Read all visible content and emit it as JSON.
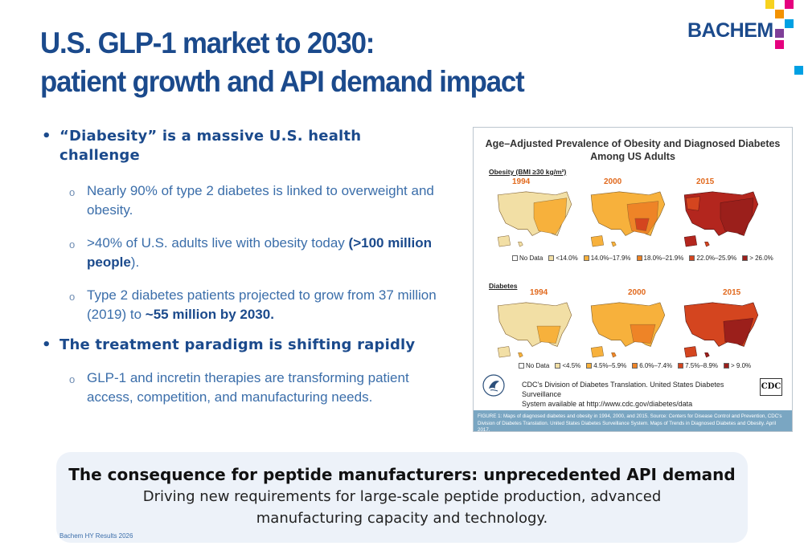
{
  "title": {
    "line1": "U.S. GLP-1 market to 2030:",
    "line2": "patient growth and API demand impact"
  },
  "logo": {
    "text": "BACHEM"
  },
  "bullets": [
    {
      "text": "“Diabesity” is a massive U.S. health challenge"
    },
    {
      "text": "The treatment paradigm is shifting rapidly"
    }
  ],
  "sub_bullets": {
    "s1": "Nearly 90% of type 2 diabetes is linked to overweight and obesity.",
    "s2_pre": ">40% of U.S. adults live with obesity today ",
    "s2_bold": "(>100 million people",
    "s2_post": ").",
    "s3_pre": "Type 2 diabetes patients projected to grow from 37 million (2019) to ",
    "s3_bold": "~55 million by 2030.",
    "s4": "GLP-1 and incretin therapies are transforming patient access, competition, and manufacturing needs."
  },
  "figure": {
    "title_line1": "Age–Adjusted Prevalence of Obesity and Diagnosed Diabetes",
    "title_line2": "Among US Adults",
    "obesity_label": "Obesity (BMI ≥30 kg/m²)",
    "diabetes_label": "Diabetes",
    "years": [
      "1994",
      "2000",
      "2015"
    ],
    "obesity_legend": [
      {
        "label": "No Data",
        "color": "#ffffff"
      },
      {
        "label": "<14.0%",
        "color": "#f2dfa5"
      },
      {
        "label": "14.0%–17.9%",
        "color": "#f7b13c"
      },
      {
        "label": "18.0%–21.9%",
        "color": "#ee8427"
      },
      {
        "label": "22.0%–25.9%",
        "color": "#d4451f"
      },
      {
        "label": "> 26.0%",
        "color": "#9b1f1b"
      }
    ],
    "diabetes_legend": [
      {
        "label": "No Data",
        "color": "#ffffff"
      },
      {
        "label": "<4.5%",
        "color": "#f2dfa5"
      },
      {
        "label": "4.5%–5.9%",
        "color": "#f7b13c"
      },
      {
        "label": "6.0%–7.4%",
        "color": "#ee8427"
      },
      {
        "label": "7.5%–8.9%",
        "color": "#d4451f"
      },
      {
        "label": "> 9.0%",
        "color": "#9b1f1b"
      }
    ],
    "source_line1": "CDC's Division of Diabetes Translation. United States Diabetes Surveillance",
    "source_line2": "System available at http://www.cdc.gov/diabetes/data",
    "cdc_logo": "CDC",
    "caption": "FIGURE 1: Maps of diagnosed diabetes and obesity in 1994, 2000, and 2015. Source: Centers for Disease Control and Prevention, CDC's Division of Diabetes Translation. United States Diabetes Surveillance System. Maps of Trends in Diagnosed Diabetes and Obesity. April 2017."
  },
  "callout": {
    "headline": "The consequence for peptide manufacturers: unprecedented API demand",
    "subline": "Driving new requirements for large-scale peptide production, advanced manufacturing capacity and technology."
  },
  "footer": {
    "text": "Bachem HY Results 2026"
  },
  "colors": {
    "brand_blue": "#1b4a8c",
    "logo_yellow": "#f7d21e",
    "logo_magenta": "#e5007e",
    "logo_cyan": "#00a0e3",
    "logo_orange": "#f39200"
  }
}
